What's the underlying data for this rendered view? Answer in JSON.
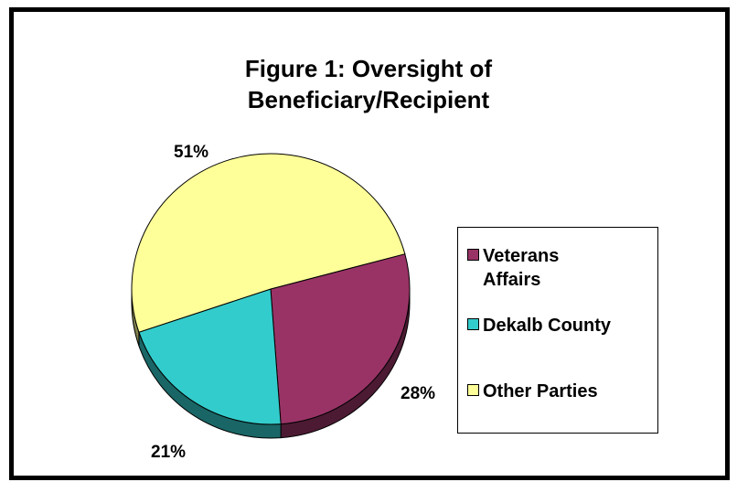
{
  "chart_data": {
    "type": "pie",
    "title_lines": [
      "Figure 1: Oversight of",
      "Beneficiary/Recipient"
    ],
    "slices": [
      {
        "name": "Veterans Affairs",
        "legend_lines": [
          "Veterans",
          "Affairs"
        ],
        "value": 28,
        "label": "28%",
        "color": "#993366",
        "side_color": "#4c1a33"
      },
      {
        "name": "Dekalb County",
        "legend_lines": [
          "Dekalb County"
        ],
        "value": 21,
        "label": "21%",
        "color": "#33cccc",
        "side_color": "#1a6666"
      },
      {
        "name": "Other Parties",
        "legend_lines": [
          "Other Parties"
        ],
        "value": 51,
        "label": "51%",
        "color": "#ffff99",
        "side_color": "#80804d"
      }
    ],
    "legend_position": "right"
  }
}
